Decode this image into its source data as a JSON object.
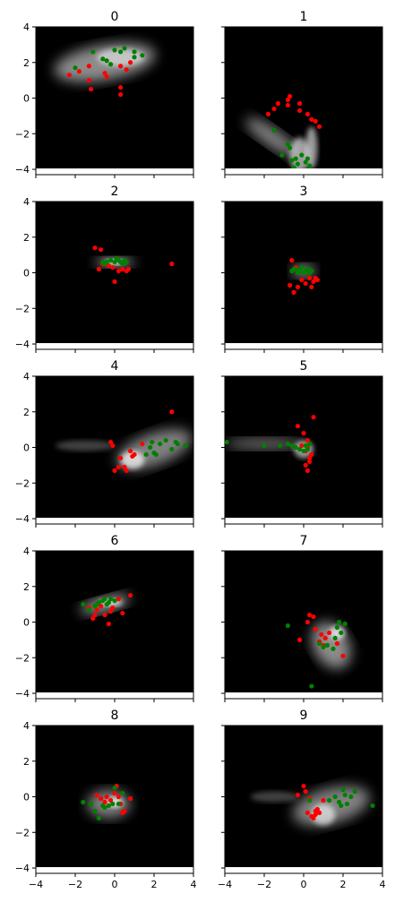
{
  "chart_data": {
    "type": "scatter",
    "layout": {
      "rows": 5,
      "cols": 2,
      "sharex": true,
      "sharey": true
    },
    "xlim": [
      -4,
      4
    ],
    "ylim": [
      -4.3,
      4
    ],
    "xticks": [
      -4,
      -2,
      0,
      2,
      4
    ],
    "yticks": [
      -4,
      -2,
      0,
      2,
      4
    ],
    "background": "#000000",
    "series_colors": {
      "red": "#ff0000",
      "green": "#008000"
    },
    "panels": [
      {
        "title": "0",
        "red": [
          [
            -2.3,
            1.3
          ],
          [
            -1.8,
            1.5
          ],
          [
            -1.3,
            1.8
          ],
          [
            -1.3,
            1.0
          ],
          [
            -1.2,
            0.5
          ],
          [
            -0.5,
            1.4
          ],
          [
            -0.4,
            1.2
          ],
          [
            0.3,
            0.6
          ],
          [
            0.3,
            0.2
          ],
          [
            0.3,
            1.8
          ],
          [
            0.6,
            1.6
          ],
          [
            0.8,
            2.0
          ]
        ],
        "green": [
          [
            -2.0,
            1.7
          ],
          [
            -1.1,
            2.6
          ],
          [
            -0.6,
            2.2
          ],
          [
            -0.4,
            2.1
          ],
          [
            -0.2,
            1.9
          ],
          [
            0.0,
            2.7
          ],
          [
            0.3,
            2.6
          ],
          [
            0.5,
            2.8
          ],
          [
            1.0,
            2.6
          ],
          [
            1.0,
            2.3
          ],
          [
            1.4,
            2.4
          ]
        ]
      },
      {
        "title": "1",
        "red": [
          [
            -1.8,
            -0.9
          ],
          [
            -1.5,
            -0.6
          ],
          [
            -1.3,
            -0.3
          ],
          [
            -0.8,
            -0.4
          ],
          [
            -0.8,
            -0.1
          ],
          [
            -0.7,
            0.1
          ],
          [
            -0.2,
            -0.3
          ],
          [
            -0.2,
            -0.7
          ],
          [
            0.2,
            -0.9
          ],
          [
            0.4,
            -1.2
          ],
          [
            0.6,
            -1.3
          ],
          [
            0.8,
            -1.6
          ]
        ],
        "green": [
          [
            -1.5,
            -1.8
          ],
          [
            -1.1,
            -3.2
          ],
          [
            -0.7,
            -2.8
          ],
          [
            -0.6,
            -3.5
          ],
          [
            -0.4,
            -3.4
          ],
          [
            -0.3,
            -3.7
          ],
          [
            -0.1,
            -3.2
          ],
          [
            0.1,
            -3.6
          ],
          [
            0.2,
            -3.4
          ],
          [
            0.3,
            -3.8
          ],
          [
            -0.8,
            -2.6
          ],
          [
            -0.5,
            -3.9
          ]
        ]
      },
      {
        "title": "2",
        "red": [
          [
            -1.0,
            1.4
          ],
          [
            -0.7,
            1.3
          ],
          [
            -0.6,
            0.5
          ],
          [
            -0.3,
            0.4
          ],
          [
            -0.1,
            0.3
          ],
          [
            0.0,
            -0.5
          ],
          [
            0.2,
            0.1
          ],
          [
            0.4,
            0.2
          ],
          [
            0.6,
            0.1
          ],
          [
            0.7,
            0.2
          ],
          [
            -0.8,
            0.2
          ],
          [
            2.9,
            0.5
          ]
        ],
        "green": [
          [
            -0.6,
            0.6
          ],
          [
            -0.4,
            0.6
          ],
          [
            -0.2,
            0.7
          ],
          [
            0.0,
            0.6
          ],
          [
            0.2,
            0.7
          ],
          [
            0.4,
            0.5
          ],
          [
            0.5,
            0.7
          ],
          [
            0.6,
            0.6
          ],
          [
            -0.5,
            0.5
          ],
          [
            0.1,
            0.8
          ],
          [
            0.3,
            0.6
          ]
        ]
      },
      {
        "title": "3",
        "red": [
          [
            -0.6,
            0.7
          ],
          [
            -0.7,
            -0.7
          ],
          [
            -0.5,
            -1.1
          ],
          [
            -0.3,
            -0.8
          ],
          [
            -0.1,
            -0.4
          ],
          [
            0.1,
            -0.6
          ],
          [
            0.3,
            -0.3
          ],
          [
            0.5,
            -0.5
          ],
          [
            0.6,
            -0.3
          ],
          [
            0.4,
            -0.8
          ],
          [
            0.7,
            -0.4
          ],
          [
            -0.4,
            0.3
          ]
        ],
        "green": [
          [
            -0.6,
            0.1
          ],
          [
            -0.4,
            0.2
          ],
          [
            -0.2,
            0.1
          ],
          [
            0.0,
            0.0
          ],
          [
            0.2,
            0.2
          ],
          [
            0.4,
            0.1
          ],
          [
            -0.5,
            0.2
          ],
          [
            -0.1,
            0.3
          ],
          [
            0.3,
            0.0
          ],
          [
            0.1,
            0.1
          ],
          [
            -0.3,
            0.0
          ]
        ]
      },
      {
        "title": "4",
        "red": [
          [
            -0.2,
            0.3
          ],
          [
            -0.1,
            0.1
          ],
          [
            0.0,
            -1.3
          ],
          [
            0.2,
            -1.1
          ],
          [
            0.3,
            -0.6
          ],
          [
            0.5,
            -1.1
          ],
          [
            0.6,
            -1.3
          ],
          [
            0.8,
            -0.2
          ],
          [
            1.0,
            -0.4
          ],
          [
            1.4,
            0.2
          ],
          [
            2.9,
            2.0
          ],
          [
            0.9,
            -0.5
          ]
        ],
        "green": [
          [
            1.6,
            -0.4
          ],
          [
            1.9,
            0.3
          ],
          [
            2.0,
            -0.3
          ],
          [
            2.3,
            0.2
          ],
          [
            2.6,
            0.4
          ],
          [
            2.9,
            -0.1
          ],
          [
            3.2,
            0.2
          ],
          [
            3.6,
            0.1
          ],
          [
            2.1,
            -0.4
          ],
          [
            1.8,
            0.0
          ],
          [
            3.1,
            0.3
          ]
        ]
      },
      {
        "title": "5",
        "red": [
          [
            -0.3,
            1.2
          ],
          [
            0.1,
            -1.0
          ],
          [
            0.2,
            -1.3
          ],
          [
            0.3,
            -0.6
          ],
          [
            0.5,
            1.7
          ],
          [
            0.4,
            -0.4
          ],
          [
            0.1,
            -0.2
          ],
          [
            0.2,
            0.4
          ],
          [
            -0.1,
            0.1
          ],
          [
            0.3,
            -0.8
          ],
          [
            0.0,
            0.8
          ],
          [
            0.2,
            0.0
          ]
        ],
        "green": [
          [
            -3.9,
            0.3
          ],
          [
            -2.0,
            0.1
          ],
          [
            -1.2,
            0.1
          ],
          [
            -0.8,
            0.2
          ],
          [
            -0.4,
            0.0
          ],
          [
            -0.2,
            -0.1
          ],
          [
            0.0,
            -0.2
          ],
          [
            0.1,
            0.1
          ],
          [
            0.3,
            0.2
          ],
          [
            -0.6,
            0.1
          ],
          [
            0.2,
            -0.1
          ]
        ]
      },
      {
        "title": "6",
        "red": [
          [
            -1.3,
            0.8
          ],
          [
            -1.1,
            0.2
          ],
          [
            -1.0,
            0.4
          ],
          [
            -0.9,
            0.7
          ],
          [
            -0.5,
            0.4
          ],
          [
            -0.3,
            -0.1
          ],
          [
            -0.2,
            0.6
          ],
          [
            0.2,
            1.3
          ],
          [
            0.4,
            0.5
          ],
          [
            0.8,
            1.5
          ],
          [
            -0.7,
            0.9
          ],
          [
            -0.1,
            0.8
          ]
        ],
        "green": [
          [
            -1.6,
            1.0
          ],
          [
            -1.3,
            0.7
          ],
          [
            -1.0,
            0.9
          ],
          [
            -0.8,
            1.1
          ],
          [
            -0.6,
            1.2
          ],
          [
            -0.4,
            1.0
          ],
          [
            -0.2,
            1.3
          ],
          [
            0.0,
            1.2
          ],
          [
            -0.9,
            1.0
          ],
          [
            -0.5,
            1.3
          ],
          [
            -0.3,
            1.1
          ]
        ]
      },
      {
        "title": "7",
        "red": [
          [
            -0.2,
            -1.0
          ],
          [
            0.2,
            0.0
          ],
          [
            0.3,
            0.4
          ],
          [
            0.5,
            0.3
          ],
          [
            0.6,
            -0.4
          ],
          [
            0.8,
            -1.1
          ],
          [
            1.0,
            -1.3
          ],
          [
            1.1,
            -0.9
          ],
          [
            1.3,
            -0.6
          ],
          [
            1.7,
            -1.2
          ],
          [
            2.0,
            -1.9
          ],
          [
            0.9,
            -0.7
          ]
        ],
        "green": [
          [
            -0.8,
            -0.2
          ],
          [
            0.4,
            -3.6
          ],
          [
            0.8,
            -1.2
          ],
          [
            1.0,
            -1.4
          ],
          [
            1.2,
            -1.3
          ],
          [
            1.5,
            -1.5
          ],
          [
            1.6,
            -0.9
          ],
          [
            1.7,
            -0.3
          ],
          [
            1.8,
            0.0
          ],
          [
            2.1,
            -0.1
          ],
          [
            1.9,
            -0.6
          ]
        ]
      },
      {
        "title": "8",
        "red": [
          [
            -0.9,
            0.1
          ],
          [
            -0.7,
            -0.1
          ],
          [
            -0.5,
            -0.3
          ],
          [
            -0.4,
            0.0
          ],
          [
            -0.2,
            -0.2
          ],
          [
            0.0,
            0.2
          ],
          [
            0.1,
            0.6
          ],
          [
            0.2,
            0.0
          ],
          [
            0.3,
            -0.4
          ],
          [
            0.5,
            -0.8
          ],
          [
            0.8,
            -0.1
          ],
          [
            0.4,
            -0.9
          ]
        ],
        "green": [
          [
            -1.6,
            -0.3
          ],
          [
            -1.2,
            -0.4
          ],
          [
            -1.0,
            -0.8
          ],
          [
            -0.8,
            -1.2
          ],
          [
            -0.6,
            -0.5
          ],
          [
            -0.3,
            -0.5
          ],
          [
            -0.1,
            -0.4
          ],
          [
            0.2,
            -0.4
          ],
          [
            0.4,
            0.2
          ],
          [
            0.0,
            0.5
          ],
          [
            -0.5,
            -0.6
          ]
        ]
      },
      {
        "title": "9",
        "red": [
          [
            -0.3,
            0.1
          ],
          [
            0.0,
            0.6
          ],
          [
            0.1,
            0.3
          ],
          [
            0.2,
            -0.9
          ],
          [
            0.4,
            -1.1
          ],
          [
            0.5,
            -1.2
          ],
          [
            0.6,
            -0.8
          ],
          [
            0.7,
            -0.7
          ],
          [
            0.8,
            -0.9
          ],
          [
            1.0,
            -0.2
          ],
          [
            0.3,
            -0.1
          ],
          [
            0.6,
            -1.0
          ]
        ],
        "green": [
          [
            0.3,
            -0.2
          ],
          [
            1.3,
            -0.2
          ],
          [
            1.6,
            0.0
          ],
          [
            1.8,
            -0.3
          ],
          [
            2.0,
            0.4
          ],
          [
            2.1,
            0.1
          ],
          [
            2.2,
            -0.4
          ],
          [
            2.4,
            0.0
          ],
          [
            2.6,
            0.3
          ],
          [
            3.5,
            -0.5
          ],
          [
            1.9,
            -0.5
          ]
        ]
      }
    ]
  }
}
